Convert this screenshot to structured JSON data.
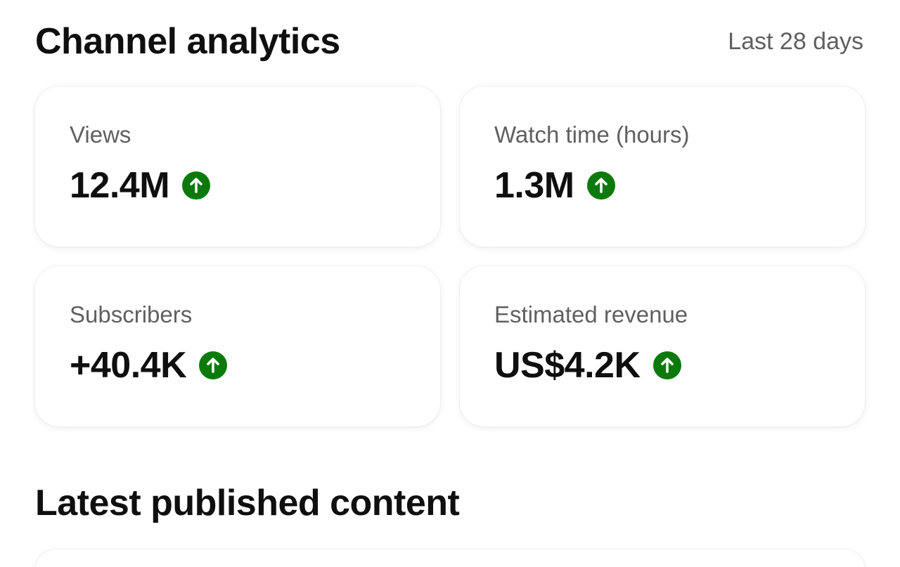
{
  "analytics": {
    "title": "Channel analytics",
    "period": "Last 28 days",
    "trend_color": "#0b7a0b",
    "cards": [
      {
        "label": "Views",
        "value": "12.4M",
        "trend": "up-arrow-icon"
      },
      {
        "label": "Watch time (hours)",
        "value": "1.3M",
        "trend": "up-arrow-icon"
      },
      {
        "label": "Subscribers",
        "value": "+40.4K",
        "trend": "up-arrow-icon"
      },
      {
        "label": "Estimated revenue",
        "value": "US$4.2K",
        "trend": "up-arrow-icon"
      }
    ]
  },
  "latest": {
    "title": "Latest published content"
  }
}
